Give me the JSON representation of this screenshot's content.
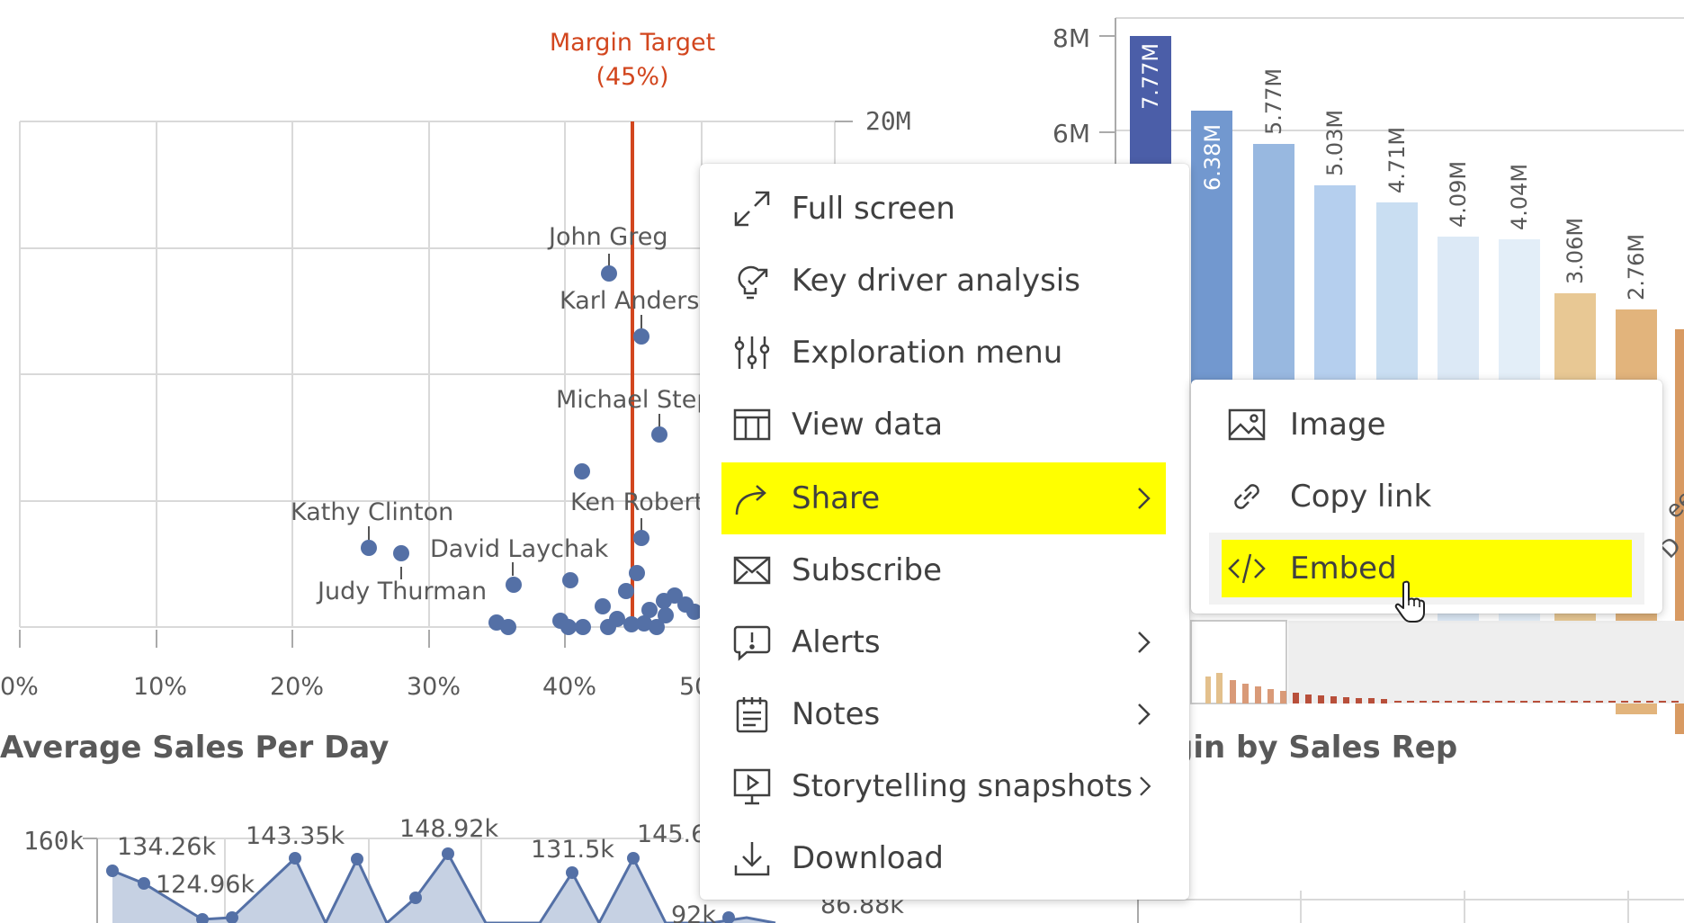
{
  "scatter": {
    "target_line": {
      "label_line1": "Margin Target",
      "label_line2": "(45%)"
    },
    "y_axis_label": "20M",
    "x_ticks": [
      "0%",
      "10%",
      "20%",
      "30%",
      "40%",
      "50"
    ],
    "point_labels": [
      "John Greg",
      "Karl Anderso",
      "Michael Step",
      "Ken Robert",
      "Kathy Clinton",
      "David Laychak",
      "Judy Thurman"
    ]
  },
  "bar_chart": {
    "y_ticks": [
      "8M",
      "6M"
    ],
    "value_labels": [
      "7.77M",
      "6.38M",
      "5.77M",
      "5.03M",
      "4.71M",
      "4.09M",
      "4.04M",
      "3.06M",
      "2.76M"
    ],
    "title_fragment": "gin by Sales Rep",
    "axis_fragments": [
      "ee",
      "D"
    ]
  },
  "line_chart": {
    "title": "Average Sales Per Day",
    "y_tick": "160k",
    "point_labels": [
      "134.26k",
      "124.96k",
      "143.35k",
      "148.92k",
      "131.5k",
      "145.6",
      "92k",
      "86.88k"
    ]
  },
  "context_menu": {
    "items": [
      {
        "label": "Full screen",
        "icon": "fullscreen-icon"
      },
      {
        "label": "Key driver analysis",
        "icon": "key-driver-icon"
      },
      {
        "label": "Exploration menu",
        "icon": "sliders-icon"
      },
      {
        "label": "View data",
        "icon": "table-icon"
      },
      {
        "label": "Share",
        "icon": "share-arrow-icon",
        "highlighted": true,
        "submenu": true
      },
      {
        "label": "Subscribe",
        "icon": "envelope-icon"
      },
      {
        "label": "Alerts",
        "icon": "alert-icon",
        "submenu": true
      },
      {
        "label": "Notes",
        "icon": "notes-icon",
        "submenu": true
      },
      {
        "label": "Storytelling snapshots",
        "icon": "snapshot-icon",
        "submenu": true
      },
      {
        "label": "Download",
        "icon": "download-icon"
      }
    ]
  },
  "share_submenu": {
    "items": [
      {
        "label": "Image",
        "icon": "image-icon"
      },
      {
        "label": "Copy link",
        "icon": "link-icon"
      },
      {
        "label": "Embed",
        "icon": "code-icon",
        "highlighted": true
      }
    ]
  },
  "colors": {
    "highlight": "#ffff00",
    "target_line": "#d2461e",
    "point": "#5470a6",
    "bar_dark": "#4b5ea8",
    "bar_light": "#c9def2",
    "bar_tan": "#e3c08c"
  }
}
